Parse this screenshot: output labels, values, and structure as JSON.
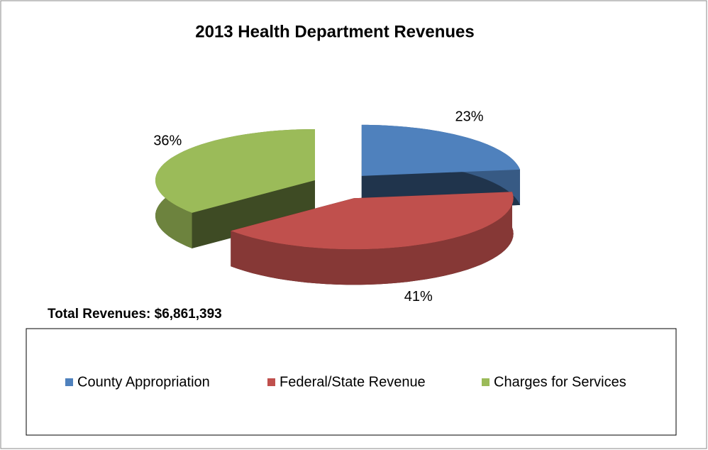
{
  "chart_data": {
    "type": "pie",
    "title": "2013 Health Department Revenues",
    "categories": [
      "County Appropriation",
      "Federal/State Revenue",
      "Charges for Services"
    ],
    "values": [
      23,
      41,
      36
    ],
    "value_labels": [
      "23%",
      "41%",
      "36%"
    ],
    "colors": [
      "#4f81bd",
      "#c0504d",
      "#9bbb59"
    ],
    "annotation": "Total Revenues:  $6,861,393",
    "legend": "bottom"
  }
}
